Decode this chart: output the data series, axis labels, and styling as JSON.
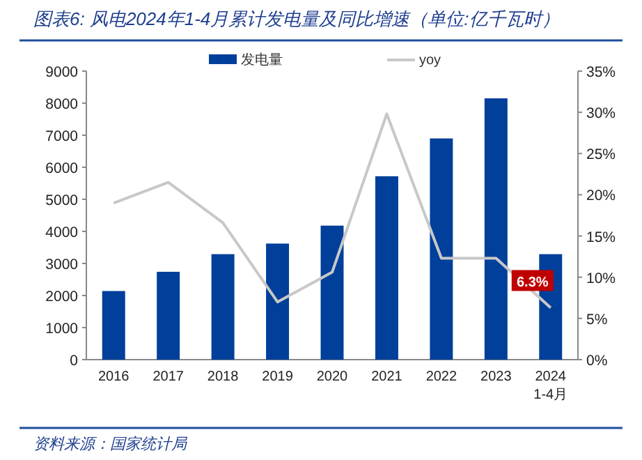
{
  "chart_data": {
    "type": "bar",
    "title": "图表6: 风电2024年1-4月累计发电量及同比增速（单位:亿千瓦时）",
    "categories": [
      "2016",
      "2017",
      "2018",
      "2019",
      "2020",
      "2021",
      "2022",
      "2023",
      "2024 1-4月"
    ],
    "series": [
      {
        "name": "发电量",
        "color": "#003f9a",
        "values": [
          2140,
          2740,
          3290,
          3620,
          4180,
          5720,
          6900,
          8150,
          3290
        ]
      },
      {
        "name": "yoy",
        "type": "line",
        "axis": "y2",
        "color": "#c8c8c8",
        "values": [
          19.0,
          21.5,
          16.6,
          7.0,
          10.6,
          29.8,
          12.3,
          12.3,
          6.3
        ],
        "value_labels": [
          null,
          null,
          null,
          null,
          null,
          null,
          null,
          null,
          "6.3%"
        ]
      }
    ],
    "ylim": [
      0,
      9000
    ],
    "yticks": [
      0,
      1000,
      2000,
      3000,
      4000,
      5000,
      6000,
      7000,
      8000,
      9000
    ],
    "y2lim": [
      0,
      35
    ],
    "y2ticks": [
      {
        "value": 0,
        "label": "0%"
      },
      {
        "value": 5,
        "label": "5%"
      },
      {
        "value": 10,
        "label": "10%"
      },
      {
        "value": 15,
        "label": "15%"
      },
      {
        "value": 20,
        "label": "20%"
      },
      {
        "value": 25,
        "label": "25%"
      },
      {
        "value": 30,
        "label": "30%"
      },
      {
        "value": 35,
        "label": "35%"
      }
    ],
    "legend": "top",
    "grid": false,
    "marker": "none",
    "annotations": [
      "资料来源：国家统计局"
    ]
  }
}
